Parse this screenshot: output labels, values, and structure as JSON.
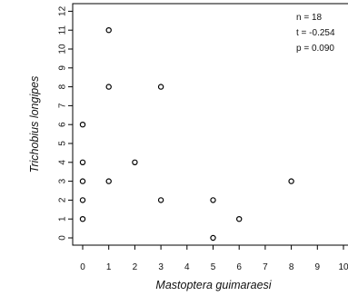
{
  "chart_data": {
    "type": "scatter",
    "xlabel": "Mastoptera guimaraesi",
    "ylabel": "Trichobius longipes",
    "xlim": [
      -0.2,
      10
    ],
    "ylim": [
      -0.2,
      12
    ],
    "x_ticks": [
      "0",
      "1",
      "2",
      "3",
      "4",
      "5",
      "6",
      "7",
      "8",
      "9",
      "10"
    ],
    "y_ticks": [
      "0",
      "1",
      "2",
      "3",
      "4",
      "5",
      "6",
      "7",
      "8",
      "9",
      "10",
      "11",
      "12"
    ],
    "grid": false,
    "marker": "open-circle",
    "points": [
      {
        "x": 0,
        "y": 1
      },
      {
        "x": 0,
        "y": 2
      },
      {
        "x": 0,
        "y": 3
      },
      {
        "x": 0,
        "y": 4
      },
      {
        "x": 0,
        "y": 6
      },
      {
        "x": 1,
        "y": 3
      },
      {
        "x": 1,
        "y": 8
      },
      {
        "x": 1,
        "y": 11
      },
      {
        "x": 2,
        "y": 4
      },
      {
        "x": 3,
        "y": 2
      },
      {
        "x": 3,
        "y": 8
      },
      {
        "x": 5,
        "y": 0
      },
      {
        "x": 5,
        "y": 2
      },
      {
        "x": 6,
        "y": 1
      },
      {
        "x": 8,
        "y": 3
      }
    ],
    "stats": [
      "n = 18",
      "t = -0.254",
      "p = 0.090"
    ]
  }
}
